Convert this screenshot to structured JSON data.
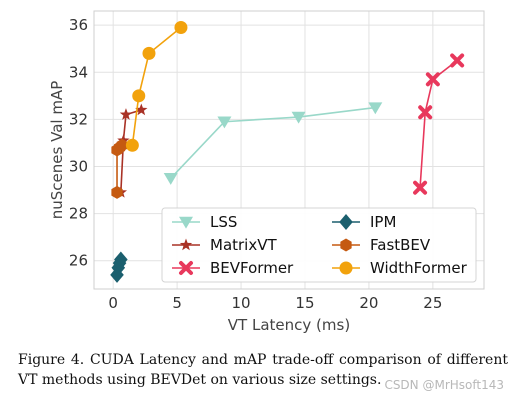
{
  "chart_data": {
    "type": "scatter",
    "title": "",
    "xlabel": "VT Latency (ms)",
    "ylabel": "nuScenes Val mAP",
    "xlim": [
      -1.5,
      29
    ],
    "ylim": [
      24.8,
      36.6
    ],
    "xticks": [
      0,
      5,
      10,
      15,
      20,
      25
    ],
    "yticks": [
      26,
      28,
      30,
      32,
      34,
      36
    ],
    "grid": true,
    "legend_position": "lower-right",
    "series": [
      {
        "name": "LSS",
        "color": "#99d8c9",
        "marker": "triangle-down",
        "line": true,
        "x": [
          4.5,
          8.7,
          14.5,
          20.5
        ],
        "y": [
          29.5,
          31.9,
          32.1,
          32.5
        ]
      },
      {
        "name": "MatrixVT",
        "color": "#a93226",
        "marker": "star",
        "line": true,
        "x": [
          0.6,
          0.8,
          1.0,
          2.2
        ],
        "y": [
          28.9,
          31.1,
          32.2,
          32.4
        ]
      },
      {
        "name": "BEVFormer",
        "color": "#e8385c",
        "marker": "x",
        "line": true,
        "x": [
          24.0,
          24.4,
          25.0,
          26.9
        ],
        "y": [
          29.1,
          32.3,
          33.7,
          34.5
        ]
      },
      {
        "name": "IPM",
        "color": "#1b5f6e",
        "marker": "diamond",
        "line": true,
        "x": [
          0.3,
          0.4,
          0.5,
          0.6
        ],
        "y": [
          25.4,
          25.7,
          25.9,
          26.05
        ]
      },
      {
        "name": "FastBEV",
        "color": "#c55a11",
        "marker": "hexagon",
        "line": true,
        "x": [
          0.3,
          0.3,
          0.5,
          0.7
        ],
        "y": [
          28.9,
          30.7,
          30.8,
          30.9
        ]
      },
      {
        "name": "WidthFormer",
        "color": "#f2a20c",
        "marker": "circle",
        "line": true,
        "x": [
          1.5,
          2.0,
          2.8,
          5.3
        ],
        "y": [
          30.9,
          33.0,
          34.8,
          35.9
        ]
      }
    ]
  },
  "caption": "Figure 4.  CUDA Latency and mAP trade-off comparison of different VT methods using BEVDet on various size settings.",
  "watermark": "CSDN @MrHsoft143"
}
